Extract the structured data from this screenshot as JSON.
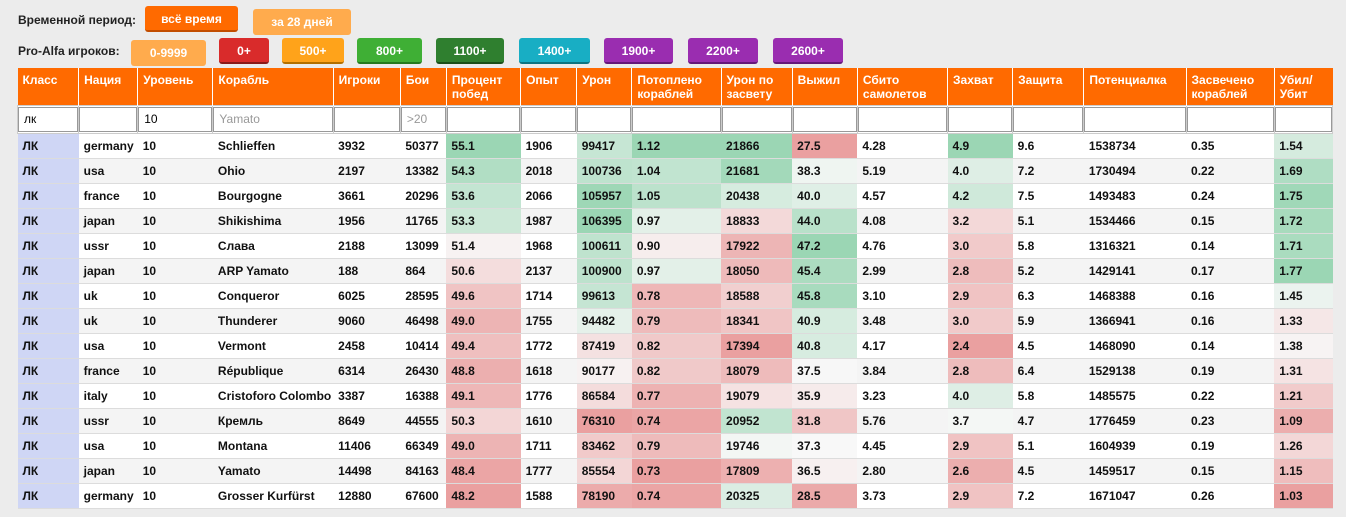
{
  "filters": {
    "period_label": "Временной период:",
    "period_buttons": [
      {
        "label": "всё время",
        "color": "#ff6a00"
      },
      {
        "label": "за 28 дней",
        "color": "#ffab4d"
      }
    ],
    "players_label": "Pro-Alfa игроков:",
    "player_buttons": [
      {
        "label": "0-9999",
        "color": "#ffab4d"
      },
      {
        "label": "0+",
        "color": "#d92b2b"
      },
      {
        "label": "500+",
        "color": "#ffa31a"
      },
      {
        "label": "800+",
        "color": "#3faf35"
      },
      {
        "label": "1100+",
        "color": "#2f7f2f"
      },
      {
        "label": "1400+",
        "color": "#18aec4"
      },
      {
        "label": "1900+",
        "color": "#9a2db0"
      },
      {
        "label": "2200+",
        "color": "#9a2db0"
      },
      {
        "label": "2600+",
        "color": "#9a2db0"
      }
    ]
  },
  "table": {
    "headers": [
      "Класс",
      "Нация",
      "Уровень",
      "Корабль",
      "Игроки",
      "Бои",
      "Процент побед",
      "Опыт",
      "Урон",
      "Потоплено кораблей",
      "Урон по засвету",
      "Выжил",
      "Сбито самолетов",
      "Захват",
      "Защита",
      "Потенциалка",
      "Засвечено кораблей",
      "Убил/ Убит"
    ],
    "filters": [
      {
        "value": "лк",
        "placeholder": ""
      },
      {
        "value": "",
        "placeholder": ""
      },
      {
        "value": "10",
        "placeholder": ""
      },
      {
        "value": "",
        "placeholder": "Yamato"
      },
      {
        "value": "",
        "placeholder": ""
      },
      {
        "value": "",
        "placeholder": ">20"
      },
      {
        "value": "",
        "placeholder": ""
      },
      {
        "value": "",
        "placeholder": ""
      },
      {
        "value": "",
        "placeholder": ""
      },
      {
        "value": "",
        "placeholder": ""
      },
      {
        "value": "",
        "placeholder": ""
      },
      {
        "value": "",
        "placeholder": ""
      },
      {
        "value": "",
        "placeholder": ""
      },
      {
        "value": "",
        "placeholder": ""
      },
      {
        "value": "",
        "placeholder": ""
      },
      {
        "value": "",
        "placeholder": ""
      },
      {
        "value": "",
        "placeholder": ""
      },
      {
        "value": "",
        "placeholder": ""
      }
    ],
    "rows": [
      [
        "ЛК",
        "germany",
        "10",
        "Schlieffen",
        "3932",
        "50377",
        "55.1",
        "1906",
        "99417",
        "1.12",
        "21866",
        "27.5",
        "4.28",
        "4.9",
        "9.6",
        "1538734",
        "0.35",
        "1.54"
      ],
      [
        "ЛК",
        "usa",
        "10",
        "Ohio",
        "2197",
        "13382",
        "54.3",
        "2018",
        "100736",
        "1.04",
        "21681",
        "38.3",
        "5.19",
        "4.0",
        "7.2",
        "1730494",
        "0.22",
        "1.69"
      ],
      [
        "ЛК",
        "france",
        "10",
        "Bourgogne",
        "3661",
        "20296",
        "53.6",
        "2066",
        "105957",
        "1.05",
        "20438",
        "40.0",
        "4.57",
        "4.2",
        "7.5",
        "1493483",
        "0.24",
        "1.75"
      ],
      [
        "ЛК",
        "japan",
        "10",
        "Shikishima",
        "1956",
        "11765",
        "53.3",
        "1987",
        "106395",
        "0.97",
        "18833",
        "44.0",
        "4.08",
        "3.2",
        "5.1",
        "1534466",
        "0.15",
        "1.72"
      ],
      [
        "ЛК",
        "ussr",
        "10",
        "Слава",
        "2188",
        "13099",
        "51.4",
        "1968",
        "100611",
        "0.90",
        "17922",
        "47.2",
        "4.76",
        "3.0",
        "5.8",
        "1316321",
        "0.14",
        "1.71"
      ],
      [
        "ЛК",
        "japan",
        "10",
        "ARP Yamato",
        "188",
        "864",
        "50.6",
        "2137",
        "100900",
        "0.97",
        "18050",
        "45.4",
        "2.99",
        "2.8",
        "5.2",
        "1429141",
        "0.17",
        "1.77"
      ],
      [
        "ЛК",
        "uk",
        "10",
        "Conqueror",
        "6025",
        "28595",
        "49.6",
        "1714",
        "99613",
        "0.78",
        "18588",
        "45.8",
        "3.10",
        "2.9",
        "6.3",
        "1468388",
        "0.16",
        "1.45"
      ],
      [
        "ЛК",
        "uk",
        "10",
        "Thunderer",
        "9060",
        "46498",
        "49.0",
        "1755",
        "94482",
        "0.79",
        "18341",
        "40.9",
        "3.48",
        "3.0",
        "5.9",
        "1366941",
        "0.16",
        "1.33"
      ],
      [
        "ЛК",
        "usa",
        "10",
        "Vermont",
        "2458",
        "10414",
        "49.4",
        "1772",
        "87419",
        "0.82",
        "17394",
        "40.8",
        "4.17",
        "2.4",
        "4.5",
        "1468090",
        "0.14",
        "1.38"
      ],
      [
        "ЛК",
        "france",
        "10",
        "République",
        "6314",
        "26430",
        "48.8",
        "1618",
        "90177",
        "0.82",
        "18079",
        "37.5",
        "3.84",
        "2.8",
        "6.4",
        "1529138",
        "0.19",
        "1.31"
      ],
      [
        "ЛК",
        "italy",
        "10",
        "Cristoforo Colombo",
        "3387",
        "16388",
        "49.1",
        "1776",
        "86584",
        "0.77",
        "19079",
        "35.9",
        "3.23",
        "4.0",
        "5.8",
        "1485575",
        "0.22",
        "1.21"
      ],
      [
        "ЛК",
        "ussr",
        "10",
        "Кремль",
        "8649",
        "44555",
        "50.3",
        "1610",
        "76310",
        "0.74",
        "20952",
        "31.8",
        "5.76",
        "3.7",
        "4.7",
        "1776459",
        "0.23",
        "1.09"
      ],
      [
        "ЛК",
        "usa",
        "10",
        "Montana",
        "11406",
        "66349",
        "49.0",
        "1711",
        "83462",
        "0.79",
        "19746",
        "37.3",
        "4.45",
        "2.9",
        "5.1",
        "1604939",
        "0.19",
        "1.26"
      ],
      [
        "ЛК",
        "japan",
        "10",
        "Yamato",
        "14498",
        "84163",
        "48.4",
        "1777",
        "85554",
        "0.73",
        "17809",
        "36.5",
        "2.80",
        "2.6",
        "4.5",
        "1459517",
        "0.15",
        "1.15"
      ],
      [
        "ЛК",
        "germany",
        "10",
        "Grosser Kurfürst",
        "12880",
        "67600",
        "48.2",
        "1588",
        "78190",
        "0.74",
        "20325",
        "28.5",
        "3.73",
        "2.9",
        "7.2",
        "1671047",
        "0.26",
        "1.03"
      ]
    ]
  }
}
